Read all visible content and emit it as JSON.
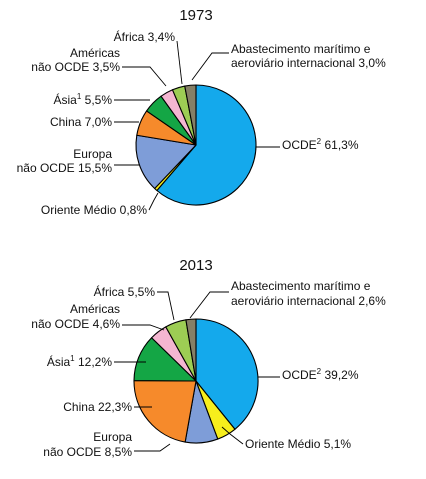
{
  "chart_data": [
    {
      "type": "pie",
      "title": "1973",
      "start": "top, clockwise",
      "slices": [
        {
          "key": "oecd",
          "label": "OCDE",
          "sup": "2",
          "value": 61.3,
          "value_text": "61,3%",
          "color": "#14a9ec"
        },
        {
          "key": "middle_east",
          "label": "Oriente Médio",
          "value": 0.8,
          "value_text": "0,8%",
          "color": "#f7ee1c"
        },
        {
          "key": "europe",
          "label": "Europa",
          "label2": "não OCDE",
          "value": 15.5,
          "value_text": "15,5%",
          "color": "#7e9dd8"
        },
        {
          "key": "china",
          "label": "China",
          "value": 7.0,
          "value_text": "7,0%",
          "color": "#f68a2b"
        },
        {
          "key": "asia",
          "label": "Ásia",
          "sup": "1",
          "value": 5.5,
          "value_text": "5,5%",
          "color": "#14a645"
        },
        {
          "key": "americas",
          "label": "Américas",
          "label2": "não OCDE",
          "value": 3.5,
          "value_text": "3,5%",
          "color": "#f4b6d1"
        },
        {
          "key": "africa",
          "label": "África",
          "value": 3.4,
          "value_text": "3,4%",
          "color": "#9dcd54"
        },
        {
          "key": "bunkers",
          "label": "Abastecimento marítimo e",
          "label2": "aeroviário internacional",
          "value": 3.0,
          "value_text": "3,0%",
          "color": "#857f66"
        }
      ]
    },
    {
      "type": "pie",
      "title": "2013",
      "start": "top, clockwise",
      "slices": [
        {
          "key": "oecd",
          "label": "OCDE",
          "sup": "2",
          "value": 39.2,
          "value_text": "39,2%",
          "color": "#14a9ec"
        },
        {
          "key": "middle_east",
          "label": "Oriente Médio",
          "value": 5.1,
          "value_text": "5,1%",
          "color": "#f7ee1c"
        },
        {
          "key": "europe",
          "label": "Europa",
          "label2": "não OCDE",
          "value": 8.5,
          "value_text": "8,5%",
          "color": "#7e9dd8"
        },
        {
          "key": "china",
          "label": "China",
          "value": 22.3,
          "value_text": "22,3%",
          "color": "#f68a2b"
        },
        {
          "key": "asia",
          "label": "Ásia",
          "sup": "1",
          "value": 12.2,
          "value_text": "12,2%",
          "color": "#14a645"
        },
        {
          "key": "americas",
          "label": "Américas",
          "label2": "não OCDE",
          "value": 4.6,
          "value_text": "4,6%",
          "color": "#f4b6d1"
        },
        {
          "key": "africa",
          "label": "África",
          "value": 5.5,
          "value_text": "5,5%",
          "color": "#9dcd54"
        },
        {
          "key": "bunkers",
          "label": "Abastecimento marítimo e",
          "label2": "aeroviário internacional",
          "value": 2.6,
          "value_text": "2,6%",
          "color": "#857f66"
        }
      ]
    }
  ]
}
